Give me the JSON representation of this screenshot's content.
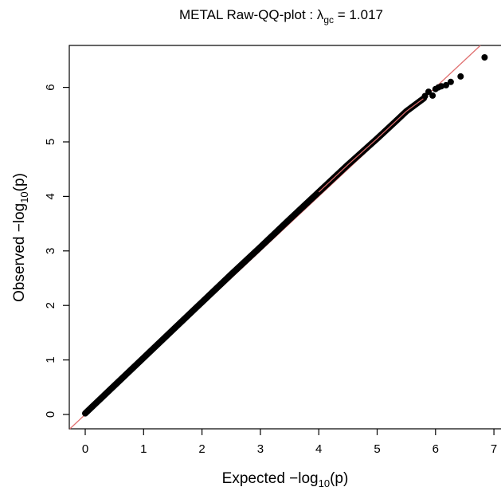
{
  "chart_data": {
    "type": "scatter",
    "title_main": "METAL Raw-QQ-plot : λ",
    "title_sub": "gc",
    "title_value": " = 1.017",
    "xlabel_main": "Expected  −log",
    "xlabel_sub": "10",
    "xlabel_var": "(p)",
    "ylabel_main": "Observed  −log",
    "ylabel_sub": "10",
    "ylabel_var": "(p)",
    "xlim": [
      0,
      7
    ],
    "ylim": [
      0,
      6.55
    ],
    "xticks": [
      "0",
      "1",
      "2",
      "3",
      "4",
      "5",
      "6",
      "7"
    ],
    "yticks": [
      "0",
      "1",
      "2",
      "3",
      "4",
      "5",
      "6"
    ],
    "grid": false,
    "reference_line": {
      "slope": 1,
      "intercept": 0,
      "color": "#e07070"
    },
    "point_color": "#000000",
    "dense_band": {
      "expected": [
        0,
        0.5,
        1,
        1.5,
        2,
        2.5,
        3,
        3.5,
        4,
        4.5,
        5,
        5.3,
        5.5,
        5.8
      ],
      "observed": [
        0.02,
        0.53,
        1.04,
        1.55,
        2.06,
        2.57,
        3.07,
        3.58,
        4.08,
        4.58,
        5.06,
        5.36,
        5.56,
        5.8
      ]
    },
    "tail_points": {
      "expected": [
        5.82,
        5.88,
        5.95,
        6.0,
        6.05,
        6.1,
        6.18,
        6.26,
        6.43,
        6.84
      ],
      "observed": [
        5.84,
        5.92,
        5.85,
        5.97,
        6.0,
        6.02,
        6.04,
        6.1,
        6.2,
        6.55
      ]
    }
  }
}
